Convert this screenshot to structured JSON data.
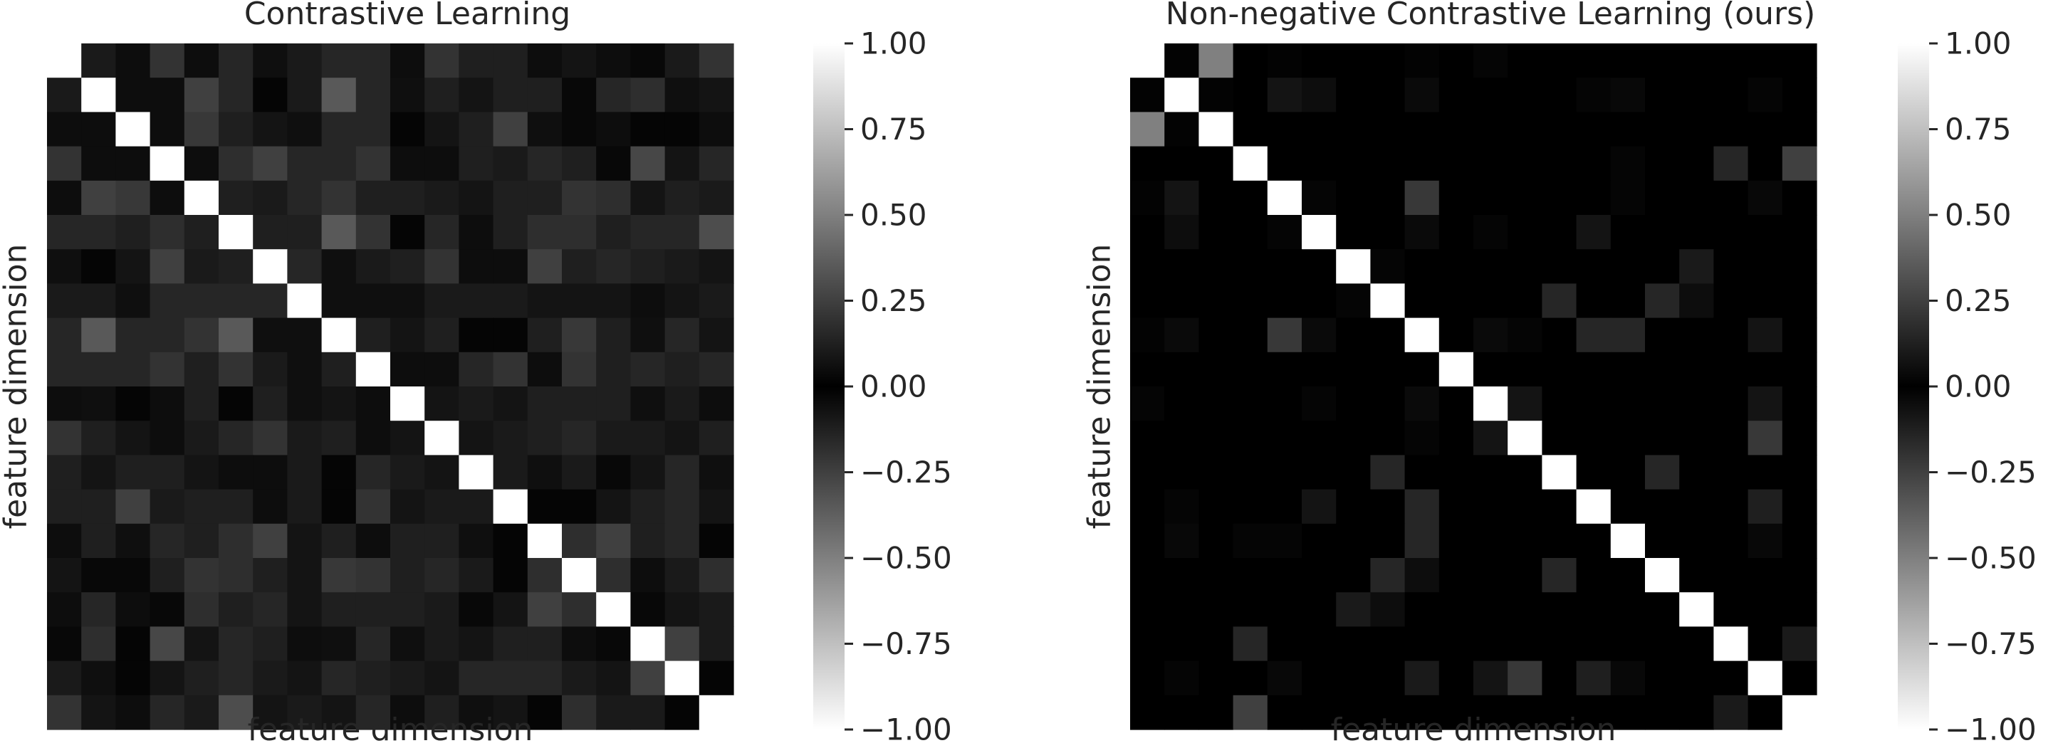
{
  "chart_data": [
    {
      "type": "heatmap",
      "title": "Contrastive Learning",
      "xlabel": "feature dimension",
      "ylabel": "feature dimension",
      "n": 20,
      "colormap": "absolute value: black at 0, white at ±1",
      "colorbar": {
        "ticks": [
          1.0,
          0.75,
          0.5,
          0.25,
          0.0,
          -0.25,
          -0.5,
          -0.75,
          -1.0
        ],
        "tick_labels": [
          "1.00",
          "0.75",
          "0.50",
          "0.25",
          "0.00",
          "−0.25",
          "−0.50",
          "−0.75",
          "−1.00"
        ],
        "range": [
          -1,
          1
        ]
      },
      "values": [
        [
          1.0,
          0.1,
          0.05,
          0.2,
          0.05,
          0.15,
          0.06,
          0.1,
          0.15,
          0.15,
          0.05,
          0.2,
          0.12,
          0.12,
          0.05,
          0.08,
          0.05,
          0.03,
          0.1,
          0.2
        ],
        [
          0.1,
          1.0,
          0.05,
          0.05,
          0.25,
          0.15,
          0.02,
          0.1,
          0.35,
          0.15,
          0.06,
          0.12,
          0.08,
          0.12,
          0.12,
          0.03,
          0.15,
          0.18,
          0.06,
          0.08
        ],
        [
          0.05,
          0.05,
          1.0,
          0.05,
          0.22,
          0.12,
          0.08,
          0.06,
          0.15,
          0.15,
          0.02,
          0.08,
          0.12,
          0.25,
          0.06,
          0.03,
          0.05,
          0.02,
          0.02,
          0.05
        ],
        [
          0.2,
          0.05,
          0.05,
          1.0,
          0.05,
          0.18,
          0.25,
          0.15,
          0.15,
          0.2,
          0.05,
          0.05,
          0.12,
          0.1,
          0.15,
          0.12,
          0.03,
          0.28,
          0.08,
          0.15
        ],
        [
          0.05,
          0.25,
          0.22,
          0.05,
          1.0,
          0.12,
          0.1,
          0.15,
          0.2,
          0.12,
          0.12,
          0.1,
          0.08,
          0.12,
          0.12,
          0.2,
          0.18,
          0.08,
          0.12,
          0.1
        ],
        [
          0.15,
          0.15,
          0.12,
          0.18,
          0.12,
          1.0,
          0.12,
          0.12,
          0.35,
          0.2,
          0.02,
          0.15,
          0.05,
          0.12,
          0.18,
          0.18,
          0.12,
          0.15,
          0.15,
          0.3
        ],
        [
          0.06,
          0.02,
          0.08,
          0.25,
          0.1,
          0.12,
          1.0,
          0.15,
          0.06,
          0.1,
          0.12,
          0.2,
          0.05,
          0.05,
          0.25,
          0.12,
          0.15,
          0.12,
          0.1,
          0.08
        ],
        [
          0.1,
          0.1,
          0.06,
          0.15,
          0.15,
          0.15,
          0.15,
          1.0,
          0.06,
          0.06,
          0.06,
          0.1,
          0.1,
          0.1,
          0.08,
          0.08,
          0.08,
          0.05,
          0.08,
          0.1
        ],
        [
          0.15,
          0.35,
          0.15,
          0.15,
          0.2,
          0.35,
          0.06,
          0.06,
          1.0,
          0.12,
          0.08,
          0.12,
          0.02,
          0.02,
          0.12,
          0.22,
          0.12,
          0.06,
          0.15,
          0.08
        ],
        [
          0.15,
          0.15,
          0.15,
          0.2,
          0.12,
          0.2,
          0.1,
          0.06,
          0.12,
          1.0,
          0.05,
          0.05,
          0.15,
          0.2,
          0.05,
          0.2,
          0.12,
          0.15,
          0.12,
          0.15
        ],
        [
          0.05,
          0.06,
          0.02,
          0.05,
          0.12,
          0.02,
          0.12,
          0.06,
          0.08,
          0.05,
          1.0,
          0.08,
          0.1,
          0.08,
          0.12,
          0.12,
          0.12,
          0.06,
          0.1,
          0.05
        ],
        [
          0.2,
          0.12,
          0.08,
          0.05,
          0.1,
          0.15,
          0.2,
          0.1,
          0.12,
          0.05,
          0.08,
          1.0,
          0.08,
          0.1,
          0.12,
          0.15,
          0.1,
          0.1,
          0.08,
          0.12
        ],
        [
          0.12,
          0.08,
          0.12,
          0.12,
          0.08,
          0.05,
          0.05,
          0.1,
          0.02,
          0.15,
          0.1,
          0.08,
          1.0,
          0.1,
          0.06,
          0.1,
          0.03,
          0.08,
          0.15,
          0.06
        ],
        [
          0.12,
          0.12,
          0.25,
          0.1,
          0.12,
          0.12,
          0.05,
          0.1,
          0.02,
          0.2,
          0.08,
          0.1,
          0.1,
          1.0,
          0.02,
          0.02,
          0.08,
          0.12,
          0.15,
          0.08
        ],
        [
          0.05,
          0.12,
          0.06,
          0.15,
          0.12,
          0.18,
          0.25,
          0.08,
          0.12,
          0.05,
          0.12,
          0.12,
          0.06,
          0.02,
          1.0,
          0.18,
          0.25,
          0.12,
          0.15,
          0.02
        ],
        [
          0.08,
          0.03,
          0.03,
          0.12,
          0.2,
          0.18,
          0.12,
          0.08,
          0.22,
          0.2,
          0.12,
          0.15,
          0.1,
          0.02,
          0.18,
          1.0,
          0.18,
          0.05,
          0.1,
          0.18
        ],
        [
          0.05,
          0.15,
          0.05,
          0.03,
          0.18,
          0.12,
          0.15,
          0.08,
          0.12,
          0.12,
          0.12,
          0.1,
          0.03,
          0.08,
          0.25,
          0.18,
          1.0,
          0.03,
          0.08,
          0.1
        ],
        [
          0.03,
          0.18,
          0.02,
          0.28,
          0.08,
          0.15,
          0.12,
          0.05,
          0.06,
          0.15,
          0.06,
          0.1,
          0.08,
          0.12,
          0.12,
          0.05,
          0.03,
          1.0,
          0.25,
          0.1
        ],
        [
          0.1,
          0.06,
          0.02,
          0.08,
          0.12,
          0.15,
          0.1,
          0.08,
          0.15,
          0.12,
          0.1,
          0.08,
          0.15,
          0.15,
          0.15,
          0.1,
          0.08,
          0.25,
          1.0,
          0.02
        ],
        [
          0.2,
          0.08,
          0.05,
          0.15,
          0.1,
          0.3,
          0.08,
          0.1,
          0.08,
          0.15,
          0.05,
          0.12,
          0.06,
          0.08,
          0.02,
          0.18,
          0.1,
          0.1,
          0.02,
          1.0
        ]
      ]
    },
    {
      "type": "heatmap",
      "title": "Non-negative Contrastive Learning (ours)",
      "xlabel": "feature dimension",
      "ylabel": "feature dimension",
      "n": 20,
      "colormap": "absolute value: black at 0, white at ±1",
      "colorbar": {
        "ticks": [
          1.0,
          0.75,
          0.5,
          0.25,
          0.0,
          -0.25,
          -0.5,
          -0.75,
          -1.0
        ],
        "tick_labels": [
          "1.00",
          "0.75",
          "0.50",
          "0.25",
          "0.00",
          "−0.25",
          "−0.50",
          "−0.75",
          "−1.00"
        ],
        "range": [
          -1,
          1
        ]
      },
      "values": [
        [
          1.0,
          0.01,
          0.5,
          0.0,
          0.01,
          0.0,
          0.0,
          0.0,
          0.01,
          0.0,
          0.02,
          0.0,
          0.0,
          0.0,
          0.0,
          0.0,
          0.0,
          0.0,
          0.0,
          0.0
        ],
        [
          0.01,
          1.0,
          0.01,
          0.0,
          0.08,
          0.05,
          0.0,
          0.0,
          0.04,
          0.0,
          0.0,
          0.0,
          0.0,
          0.02,
          0.03,
          0.0,
          0.0,
          0.0,
          0.02,
          0.0
        ],
        [
          0.5,
          0.01,
          1.0,
          0.0,
          0.0,
          0.0,
          0.0,
          0.0,
          0.0,
          0.0,
          0.0,
          0.0,
          0.0,
          0.0,
          0.0,
          0.0,
          0.0,
          0.0,
          0.0,
          0.0
        ],
        [
          0.0,
          0.0,
          0.0,
          1.0,
          0.0,
          0.0,
          0.0,
          0.0,
          0.0,
          0.0,
          0.0,
          0.0,
          0.0,
          0.0,
          0.02,
          0.0,
          0.0,
          0.15,
          0.0,
          0.25
        ],
        [
          0.01,
          0.08,
          0.0,
          0.0,
          1.0,
          0.02,
          0.0,
          0.0,
          0.22,
          0.0,
          0.0,
          0.0,
          0.0,
          0.0,
          0.02,
          0.0,
          0.0,
          0.0,
          0.03,
          0.0
        ],
        [
          0.0,
          0.05,
          0.0,
          0.0,
          0.02,
          1.0,
          0.0,
          0.0,
          0.04,
          0.0,
          0.02,
          0.0,
          0.0,
          0.08,
          0.0,
          0.0,
          0.0,
          0.0,
          0.0,
          0.0
        ],
        [
          0.0,
          0.0,
          0.0,
          0.0,
          0.0,
          0.0,
          1.0,
          0.02,
          0.0,
          0.0,
          0.0,
          0.0,
          0.0,
          0.0,
          0.0,
          0.0,
          0.1,
          0.0,
          0.0,
          0.0
        ],
        [
          0.0,
          0.0,
          0.0,
          0.0,
          0.0,
          0.0,
          0.02,
          1.0,
          0.0,
          0.0,
          0.0,
          0.0,
          0.15,
          0.0,
          0.0,
          0.15,
          0.05,
          0.0,
          0.0,
          0.0
        ],
        [
          0.01,
          0.04,
          0.0,
          0.0,
          0.22,
          0.04,
          0.0,
          0.0,
          1.0,
          0.0,
          0.04,
          0.02,
          0.0,
          0.15,
          0.15,
          0.0,
          0.0,
          0.0,
          0.08,
          0.0
        ],
        [
          0.0,
          0.0,
          0.0,
          0.0,
          0.0,
          0.0,
          0.0,
          0.0,
          0.0,
          1.0,
          0.0,
          0.0,
          0.0,
          0.0,
          0.0,
          0.0,
          0.0,
          0.0,
          0.0,
          0.0
        ],
        [
          0.02,
          0.0,
          0.0,
          0.0,
          0.0,
          0.02,
          0.0,
          0.0,
          0.04,
          0.0,
          1.0,
          0.08,
          0.0,
          0.0,
          0.0,
          0.0,
          0.0,
          0.0,
          0.08,
          0.0
        ],
        [
          0.0,
          0.0,
          0.0,
          0.0,
          0.0,
          0.0,
          0.0,
          0.0,
          0.02,
          0.0,
          0.08,
          1.0,
          0.0,
          0.0,
          0.0,
          0.0,
          0.0,
          0.0,
          0.22,
          0.0
        ],
        [
          0.0,
          0.0,
          0.0,
          0.0,
          0.0,
          0.0,
          0.0,
          0.15,
          0.0,
          0.0,
          0.0,
          0.0,
          1.0,
          0.0,
          0.0,
          0.15,
          0.0,
          0.0,
          0.0,
          0.0
        ],
        [
          0.0,
          0.02,
          0.0,
          0.0,
          0.0,
          0.08,
          0.0,
          0.0,
          0.15,
          0.0,
          0.0,
          0.0,
          0.0,
          1.0,
          0.0,
          0.0,
          0.0,
          0.0,
          0.12,
          0.0
        ],
        [
          0.0,
          0.03,
          0.0,
          0.02,
          0.02,
          0.0,
          0.0,
          0.0,
          0.15,
          0.0,
          0.0,
          0.0,
          0.0,
          0.0,
          1.0,
          0.0,
          0.0,
          0.0,
          0.03,
          0.0
        ],
        [
          0.0,
          0.0,
          0.0,
          0.0,
          0.0,
          0.0,
          0.0,
          0.15,
          0.05,
          0.0,
          0.0,
          0.0,
          0.15,
          0.0,
          0.0,
          1.0,
          0.0,
          0.0,
          0.0,
          0.0
        ],
        [
          0.0,
          0.0,
          0.0,
          0.0,
          0.0,
          0.0,
          0.1,
          0.05,
          0.0,
          0.0,
          0.0,
          0.0,
          0.0,
          0.0,
          0.0,
          0.0,
          1.0,
          0.0,
          0.0,
          0.0
        ],
        [
          0.0,
          0.0,
          0.0,
          0.15,
          0.0,
          0.0,
          0.0,
          0.0,
          0.0,
          0.0,
          0.0,
          0.0,
          0.0,
          0.0,
          0.0,
          0.0,
          0.0,
          1.0,
          0.0,
          0.1
        ],
        [
          0.0,
          0.02,
          0.0,
          0.0,
          0.03,
          0.0,
          0.0,
          0.0,
          0.1,
          0.0,
          0.08,
          0.22,
          0.0,
          0.12,
          0.03,
          0.0,
          0.0,
          0.0,
          1.0,
          0.0
        ],
        [
          0.0,
          0.0,
          0.0,
          0.25,
          0.0,
          0.0,
          0.0,
          0.0,
          0.0,
          0.0,
          0.0,
          0.0,
          0.0,
          0.0,
          0.0,
          0.0,
          0.0,
          0.1,
          0.0,
          1.0
        ]
      ]
    }
  ]
}
